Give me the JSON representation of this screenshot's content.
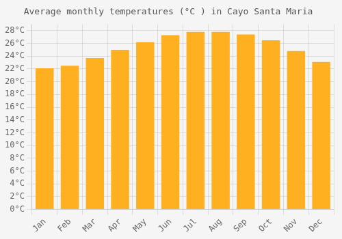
{
  "chart_data": {
    "type": "bar",
    "title": "Average monthly temperatures (°C ) in Cayo Santa Maria",
    "categories": [
      "Jan",
      "Feb",
      "Mar",
      "Apr",
      "May",
      "Jun",
      "Jul",
      "Aug",
      "Sep",
      "Oct",
      "Nov",
      "Dec"
    ],
    "values": [
      22.1,
      22.5,
      23.7,
      25.0,
      26.2,
      27.3,
      27.8,
      27.8,
      27.4,
      26.5,
      24.8,
      23.1
    ],
    "color": "#FFB020",
    "ylim": [
      0,
      29
    ],
    "yticks": [
      {
        "value": 0,
        "label": "0°C"
      },
      {
        "value": 2,
        "label": "2°C"
      },
      {
        "value": 4,
        "label": "4°C"
      },
      {
        "value": 6,
        "label": "6°C"
      },
      {
        "value": 8,
        "label": "8°C"
      },
      {
        "value": 10,
        "label": "10°C"
      },
      {
        "value": 12,
        "label": "12°C"
      },
      {
        "value": 14,
        "label": "14°C"
      },
      {
        "value": 16,
        "label": "16°C"
      },
      {
        "value": 18,
        "label": "18°C"
      },
      {
        "value": 20,
        "label": "20°C"
      },
      {
        "value": 22,
        "label": "22°C"
      },
      {
        "value": 24,
        "label": "24°C"
      },
      {
        "value": 26,
        "label": "26°C"
      },
      {
        "value": 28,
        "label": "28°C"
      }
    ],
    "grid": true
  }
}
